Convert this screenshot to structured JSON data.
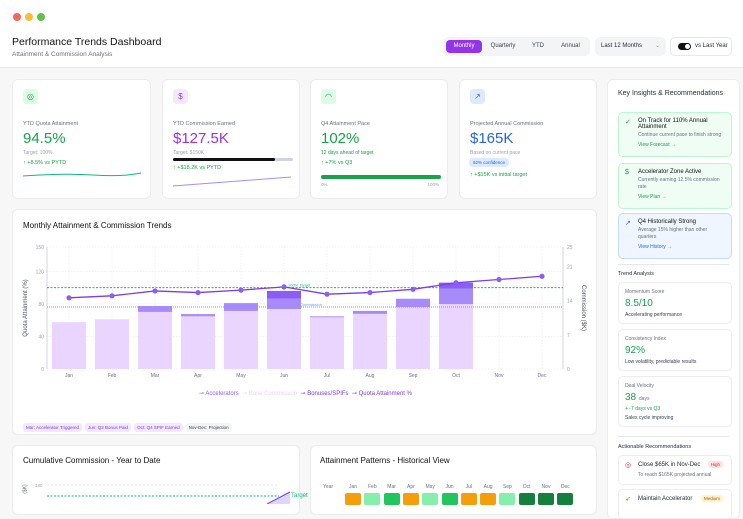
{
  "header": {
    "title": "Performance Trends Dashboard",
    "subtitle": "Attainment & Commission Analysis",
    "periods": [
      "Monthly",
      "Quarterly",
      "YTD",
      "Annual"
    ],
    "active_period": "Monthly",
    "range": "Last 12 Months",
    "compare_label": "vs Last Year",
    "compare_on": true
  },
  "kpis": [
    {
      "icon": "target-icon",
      "label": "YTD Quota Attainment",
      "value": "94.5%",
      "sub": "Target: 100%",
      "delta": "+8.5% vs PYTD",
      "color": "#16a34a"
    },
    {
      "icon": "dollar-icon",
      "label": "YTD Commission Earned",
      "value": "$127.5K",
      "sub": "Target: $150K",
      "delta": "+$18.2K vs PYTD",
      "color": "#9333ea",
      "progress": 0.85
    },
    {
      "icon": "gauge-icon",
      "label": "Q4 Attainment Pace",
      "value": "102%",
      "sub": "12 days ahead of target",
      "delta": "+7% vs Q3",
      "color": "#16a34a",
      "progress": 1.0,
      "min": "0%",
      "max": "100%"
    },
    {
      "icon": "trend-up-icon",
      "label": "Projected Annual Commission",
      "value": "$165K",
      "sub": "Based on current pace",
      "badge": "92% confidence",
      "delta": "+$15K vs initial target",
      "color": "#2563eb"
    }
  ],
  "chart_data": {
    "type": "bar",
    "title": "Monthly Attainment & Commission Trends",
    "categories": [
      "Jan",
      "Feb",
      "Mar",
      "Apr",
      "May",
      "Jun",
      "Jul",
      "Aug",
      "Sep",
      "Oct",
      "Nov",
      "Dec"
    ],
    "ylabel": "Quota Attainment (%)",
    "y2label": "Commission ($K)",
    "ylim": [
      0,
      150
    ],
    "yticks": [
      0,
      40,
      80,
      120,
      150
    ],
    "y2lim": [
      0,
      25
    ],
    "y2ticks": [
      0,
      7,
      14,
      21,
      25
    ],
    "series": [
      {
        "name": "Base Commission",
        "axis": "y2",
        "color": "#e9d5ff",
        "values": [
          9.6,
          10.2,
          11.7,
          10.8,
          11.9,
          12.3,
          10.6,
          11.3,
          12.7,
          13.3,
          null,
          null
        ]
      },
      {
        "name": "Accelerators",
        "axis": "y2",
        "color": "#a78bfa",
        "values": [
          0,
          0,
          1.2,
          0.45,
          1.6,
          2.1,
          0.2,
          0.6,
          1.7,
          3.2,
          null,
          null
        ]
      },
      {
        "name": "Bonuses/SPIFs",
        "axis": "y2",
        "color": "#8b5cf6",
        "values": [
          0,
          0,
          0,
          0,
          0,
          1.6,
          0,
          0,
          0,
          1.2,
          null,
          null
        ]
      },
      {
        "name": "Quota Attainment %",
        "axis": "y",
        "type": "line",
        "color": "#7c3aed",
        "values": [
          87.5,
          90,
          96,
          94,
          97,
          101,
          92,
          94,
          98,
          106,
          110,
          114
        ]
      }
    ],
    "reference_lines": [
      {
        "label": "100% Target",
        "axis": "y",
        "value": 100,
        "color": "#10b981"
      },
      {
        "label": "Commission",
        "axis": "y2",
        "value": 12.7,
        "color": "#60a5fa"
      }
    ],
    "legend": [
      "Accelerators",
      "Base Commission",
      "Bonuses/SPIFs",
      "Quota Attainment %"
    ],
    "legend_position": "bottom",
    "grid": true
  },
  "annotations": [
    "Mar: Accelerator Triggered",
    "Jun: Q2 Bonus Paid",
    "Oct: Q4 SPIF Earned",
    "Nov-Dec: Projection"
  ],
  "cumulative": {
    "title": "Cumulative Commission - Year to Date",
    "ylabel": "($K)",
    "ytop": "180",
    "target_label": "Target"
  },
  "heatmap": {
    "title": "Attainment Patterns - Historical View",
    "year_label": "Year",
    "months": [
      "Jan",
      "Feb",
      "Mar",
      "Apr",
      "May",
      "Jun",
      "Jul",
      "Aug",
      "Sep",
      "Oct",
      "Nov",
      "Dec"
    ],
    "colors": [
      "#f59e0b",
      "#86efac",
      "#22c55e",
      "#f59e0b",
      "#86efac",
      "#22c55e",
      "#f59e0b",
      "#f59e0b",
      "#86efac",
      "#15803d",
      "#15803d",
      "#15803d"
    ]
  },
  "sidebar": {
    "title": "Key Insights & Recommendations",
    "insights": [
      {
        "icon": "check-circle-icon",
        "title": "On Track for 110% Annual Attainment",
        "text": "Continue current pace to finish strong",
        "link": "View Forecast →",
        "tone": "green"
      },
      {
        "icon": "dollar-icon",
        "title": "Accelerator Zone Active",
        "text": "Currently earning 12.5% commission rate",
        "link": "View Plan →",
        "tone": "green"
      },
      {
        "icon": "trend-up-icon",
        "title": "Q4 Historically Strong",
        "text": "Average 15% higher than other quarters",
        "link": "View History →",
        "tone": "blue"
      }
    ],
    "trend_title": "Trend Analysis",
    "trends": [
      {
        "label": "Momentum Score",
        "value": "8.5/10",
        "desc": "Accelerating performance"
      },
      {
        "label": "Consistency Index",
        "value": "92%",
        "desc": "Low volatility, predictable results"
      },
      {
        "label": "Deal Velocity",
        "value": "38",
        "unit": "days",
        "delta": "+ -7 days vs Q3",
        "desc": "Sales cycle improving"
      }
    ],
    "rec_title": "Actionable Recommendations",
    "recs": [
      {
        "icon": "target-icon",
        "title": "Close $65K in Nov-Dec",
        "badge": "High",
        "text": "To reach $165K projected annual"
      },
      {
        "icon": "rocket-icon",
        "title": "Maintain Accelerator",
        "badge": "Medium"
      }
    ]
  }
}
